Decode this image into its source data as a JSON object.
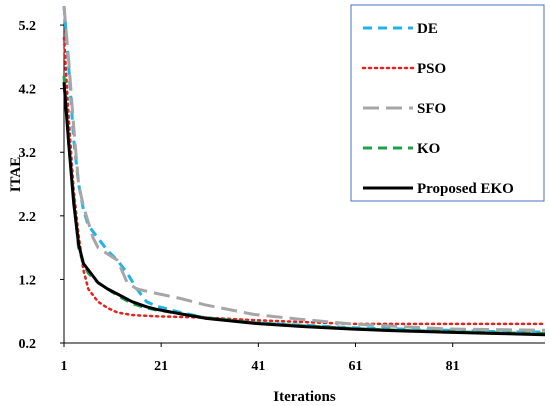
{
  "chart_data": {
    "type": "line",
    "xlabel": "Iterations",
    "ylabel": "ITAE",
    "xlim": [
      1,
      100
    ],
    "ylim": [
      0.2,
      5.5
    ],
    "x_ticks": [
      "1",
      "21",
      "41",
      "61",
      "81"
    ],
    "y_ticks": [
      "0.2",
      "1.2",
      "2.2",
      "3.2",
      "4.2",
      "5.2"
    ],
    "grid": false,
    "legend_position": "top-right",
    "series": [
      {
        "name": "DE",
        "color": "#1fb4e6",
        "dash": "dashed",
        "points": [
          [
            1,
            5.5
          ],
          [
            2,
            4.5
          ],
          [
            3,
            3.4
          ],
          [
            4,
            2.7
          ],
          [
            5,
            2.3
          ],
          [
            6,
            2.05
          ],
          [
            8,
            1.85
          ],
          [
            10,
            1.65
          ],
          [
            12,
            1.5
          ],
          [
            14,
            1.3
          ],
          [
            16,
            1.05
          ],
          [
            18,
            0.85
          ],
          [
            20,
            0.78
          ],
          [
            25,
            0.68
          ],
          [
            30,
            0.6
          ],
          [
            40,
            0.52
          ],
          [
            50,
            0.48
          ],
          [
            60,
            0.44
          ],
          [
            70,
            0.42
          ],
          [
            80,
            0.4
          ],
          [
            90,
            0.38
          ],
          [
            100,
            0.37
          ]
        ]
      },
      {
        "name": "PSO",
        "color": "#e82020",
        "dash": "dotted",
        "points": [
          [
            1,
            5.0
          ],
          [
            2,
            3.7
          ],
          [
            3,
            2.6
          ],
          [
            4,
            1.9
          ],
          [
            5,
            1.35
          ],
          [
            6,
            1.05
          ],
          [
            8,
            0.85
          ],
          [
            10,
            0.75
          ],
          [
            12,
            0.68
          ],
          [
            15,
            0.64
          ],
          [
            20,
            0.62
          ],
          [
            30,
            0.6
          ],
          [
            40,
            0.56
          ],
          [
            50,
            0.53
          ],
          [
            60,
            0.5
          ],
          [
            70,
            0.5
          ],
          [
            80,
            0.5
          ],
          [
            90,
            0.5
          ],
          [
            100,
            0.5
          ]
        ]
      },
      {
        "name": "SFO",
        "color": "#a6a6a6",
        "dash": "longdash",
        "points": [
          [
            1,
            5.5
          ],
          [
            2,
            4.6
          ],
          [
            3,
            3.6
          ],
          [
            4,
            2.7
          ],
          [
            5,
            2.35
          ],
          [
            6,
            2.1
          ],
          [
            7,
            1.85
          ],
          [
            8,
            1.7
          ],
          [
            10,
            1.6
          ],
          [
            12,
            1.5
          ],
          [
            14,
            1.15
          ],
          [
            16,
            1.05
          ],
          [
            20,
            0.98
          ],
          [
            25,
            0.9
          ],
          [
            30,
            0.8
          ],
          [
            40,
            0.65
          ],
          [
            50,
            0.57
          ],
          [
            60,
            0.5
          ],
          [
            70,
            0.46
          ],
          [
            80,
            0.42
          ],
          [
            90,
            0.41
          ],
          [
            100,
            0.4
          ]
        ]
      },
      {
        "name": "KO",
        "color": "#1fa04b",
        "dash": "dashed",
        "points": [
          [
            1,
            4.4
          ],
          [
            2,
            3.3
          ],
          [
            3,
            2.5
          ],
          [
            4,
            1.7
          ],
          [
            5,
            1.45
          ],
          [
            6,
            1.3
          ],
          [
            8,
            1.15
          ],
          [
            10,
            1.05
          ],
          [
            12,
            0.95
          ],
          [
            15,
            0.82
          ],
          [
            18,
            0.75
          ],
          [
            20,
            0.72
          ],
          [
            25,
            0.66
          ],
          [
            30,
            0.6
          ],
          [
            40,
            0.52
          ],
          [
            50,
            0.47
          ],
          [
            60,
            0.43
          ],
          [
            70,
            0.4
          ],
          [
            80,
            0.38
          ],
          [
            90,
            0.36
          ],
          [
            100,
            0.35
          ]
        ]
      },
      {
        "name": "Proposed EKO",
        "color": "#000000",
        "dash": "solid",
        "points": [
          [
            1,
            4.3
          ],
          [
            2,
            3.3
          ],
          [
            3,
            2.4
          ],
          [
            4,
            1.75
          ],
          [
            5,
            1.45
          ],
          [
            6,
            1.35
          ],
          [
            8,
            1.15
          ],
          [
            10,
            1.05
          ],
          [
            12,
            0.97
          ],
          [
            15,
            0.85
          ],
          [
            18,
            0.77
          ],
          [
            20,
            0.73
          ],
          [
            25,
            0.66
          ],
          [
            30,
            0.59
          ],
          [
            40,
            0.51
          ],
          [
            50,
            0.46
          ],
          [
            60,
            0.42
          ],
          [
            70,
            0.39
          ],
          [
            80,
            0.37
          ],
          [
            90,
            0.35
          ],
          [
            100,
            0.33
          ]
        ]
      }
    ]
  }
}
